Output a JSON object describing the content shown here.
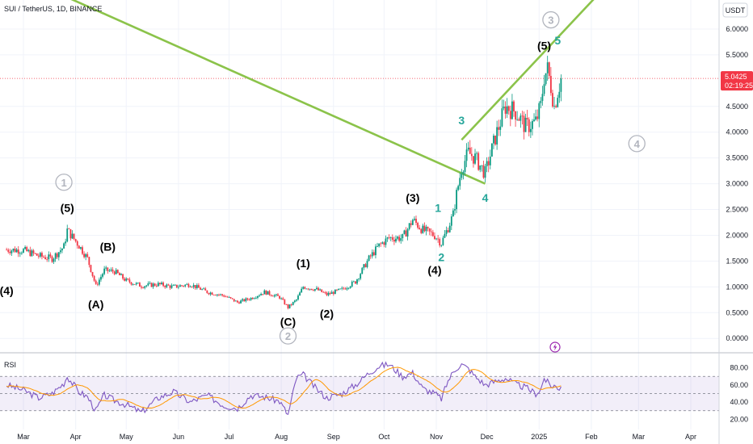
{
  "header": {
    "title": "SUI / TetherUS, 1D, BINANCE"
  },
  "axis": {
    "currency": "USDT"
  },
  "price": {
    "last": "5.0425",
    "countdown": "02:19:25"
  },
  "rsi": {
    "label": "RSI",
    "ticks": [
      "80.00",
      "60.00",
      "40.00",
      "20.00"
    ]
  },
  "colors": {
    "bull": "#089981",
    "bear": "#f23645",
    "channel": "#8bc34a",
    "wave_main": "#000000",
    "wave_minor": "#26a69a",
    "wave_circle": "#b2b5be",
    "rsi_line": "#7e57c2",
    "rsi_ma": "#ff9800",
    "rsi_band": "#7e57c2",
    "price_label": "#f23645"
  },
  "chart_data": [
    {
      "type": "candlestick",
      "title": "SUI / TetherUS, 1D, BINANCE",
      "ylabel": "USDT",
      "ylim": [
        -0.2,
        6.5
      ],
      "x_ticks": [
        "Mar",
        "Apr",
        "May",
        "Jun",
        "Jul",
        "Aug",
        "Sep",
        "Oct",
        "Nov",
        "Dec",
        "2025",
        "Feb",
        "Mar",
        "Apr"
      ],
      "y_ticks": [
        "6.0000",
        "5.5000",
        "4.5000",
        "4.0000",
        "3.5000",
        "3.0000",
        "2.5000",
        "2.0000",
        "1.5000",
        "1.0000",
        "0.5000",
        "0.0000"
      ],
      "last_price": 5.0425,
      "series": [
        {
          "name": "close",
          "x": [
            "Feb 20",
            "Mar 1",
            "Mar 10",
            "Mar 18",
            "Mar 25",
            "Mar 27",
            "Apr 3",
            "Apr 8",
            "Apr 13",
            "Apr 18",
            "Apr 24",
            "May 1",
            "May 10",
            "May 20",
            "May 29",
            "Jun 8",
            "Jun 18",
            "Jun 28",
            "Jul 6",
            "Jul 14",
            "Jul 22",
            "Jul 31",
            "Aug 5",
            "Aug 10",
            "Aug 14",
            "Aug 22",
            "Aug 28",
            "Sep 6",
            "Sep 14",
            "Sep 22",
            "Sep 28",
            "Oct 4",
            "Oct 12",
            "Oct 18",
            "Oct 24",
            "Oct 31",
            "Nov 4",
            "Nov 8",
            "Nov 11",
            "Nov 13",
            "Nov 16",
            "Nov 20",
            "Nov 24",
            "Nov 30",
            "Dec 6",
            "Dec 12",
            "Dec 18",
            "Dec 24",
            "Dec 30",
            "Jan 2",
            "Jan 4",
            "Jan 6",
            "Jan 8",
            "Jan 10",
            "Jan 12",
            "Jan 14"
          ],
          "values": [
            1.72,
            1.71,
            1.6,
            1.55,
            1.78,
            2.1,
            1.8,
            1.55,
            1.02,
            1.32,
            1.3,
            1.12,
            1.02,
            1.05,
            1.0,
            1.05,
            0.9,
            0.83,
            0.7,
            0.78,
            0.9,
            0.8,
            0.6,
            0.75,
            1.0,
            0.95,
            0.85,
            0.95,
            1.1,
            1.55,
            1.8,
            1.95,
            1.95,
            2.3,
            2.1,
            2.0,
            1.85,
            2.15,
            2.4,
            2.8,
            3.3,
            3.6,
            3.5,
            3.2,
            3.9,
            4.5,
            4.4,
            4.1,
            4.2,
            4.5,
            5.1,
            5.2,
            4.9,
            4.5,
            4.8,
            5.04
          ]
        }
      ],
      "wave_labels": [
        {
          "text": "(4)",
          "style": "main",
          "x": "Feb 20",
          "y": 0.85
        },
        {
          "text": "(5)",
          "style": "main",
          "x": "Mar 27",
          "y": 2.45
        },
        {
          "text": "(A)",
          "style": "main",
          "x": "Apr 13",
          "y": 0.58
        },
        {
          "text": "(B)",
          "style": "main",
          "x": "Apr 20",
          "y": 1.7
        },
        {
          "text": "(C)",
          "style": "main",
          "x": "Aug 5",
          "y": 0.25
        },
        {
          "text": "(1)",
          "style": "main",
          "x": "Aug 14",
          "y": 1.38
        },
        {
          "text": "(2)",
          "style": "main",
          "x": "Aug 28",
          "y": 0.4
        },
        {
          "text": "(3)",
          "style": "main",
          "x": "Oct 18",
          "y": 2.65
        },
        {
          "text": "(4)",
          "style": "main",
          "x": "Oct 31",
          "y": 1.25
        },
        {
          "text": "(5)",
          "style": "main",
          "x": "Jan 4",
          "y": 5.6
        },
        {
          "text": "1",
          "style": "minor",
          "x": "Nov 2",
          "y": 2.45
        },
        {
          "text": "2",
          "style": "minor",
          "x": "Nov 4",
          "y": 1.5
        },
        {
          "text": "3",
          "style": "minor",
          "x": "Nov 16",
          "y": 4.15
        },
        {
          "text": "4",
          "style": "minor",
          "x": "Nov 30",
          "y": 2.65
        },
        {
          "text": "5",
          "style": "minor",
          "x": "Jan 12",
          "y": 5.7
        },
        {
          "text": "1",
          "style": "circle",
          "x": "Mar 25",
          "y": 2.95
        },
        {
          "text": "2",
          "style": "circle",
          "x": "Aug 5",
          "y": -0.03
        },
        {
          "text": "3",
          "style": "circle",
          "x": "Jan 8",
          "y": 6.1
        },
        {
          "text": "4",
          "style": "circle",
          "x": "Feb 28",
          "y": 3.7
        }
      ],
      "channel": [
        {
          "from": {
            "x": "Nov 16",
            "y": 3.85
          },
          "to": {
            "x": "Feb 3",
            "y": 6.6
          }
        },
        {
          "from": {
            "x": "Nov 30",
            "y": 3.0
          },
          "to": {
            "x": "Mar 28",
            "y": 6.6
          }
        }
      ]
    },
    {
      "type": "line",
      "title": "RSI",
      "ylim": [
        10,
        90
      ],
      "y_ticks": [
        "80.00",
        "60.00",
        "40.00",
        "20.00"
      ],
      "band": [
        30,
        70
      ],
      "midline": 50,
      "series": [
        {
          "name": "rsi",
          "x": [
            "Feb 20",
            "Mar 1",
            "Mar 10",
            "Mar 18",
            "Mar 25",
            "Mar 27",
            "Apr 3",
            "Apr 8",
            "Apr 13",
            "Apr 18",
            "Apr 24",
            "May 1",
            "May 10",
            "May 20",
            "May 29",
            "Jun 8",
            "Jun 18",
            "Jun 28",
            "Jul 6",
            "Jul 14",
            "Jul 22",
            "Jul 31",
            "Aug 5",
            "Aug 10",
            "Aug 14",
            "Aug 22",
            "Aug 28",
            "Sep 6",
            "Sep 14",
            "Sep 22",
            "Sep 28",
            "Oct 4",
            "Oct 12",
            "Oct 18",
            "Oct 24",
            "Oct 31",
            "Nov 4",
            "Nov 8",
            "Nov 11",
            "Nov 13",
            "Nov 16",
            "Nov 20",
            "Nov 24",
            "Nov 30",
            "Dec 6",
            "Dec 12",
            "Dec 18",
            "Dec 24",
            "Dec 30",
            "Jan 2",
            "Jan 4",
            "Jan 6",
            "Jan 8",
            "Jan 10",
            "Jan 12",
            "Jan 14"
          ],
          "values": [
            60,
            54,
            45,
            50,
            62,
            70,
            52,
            46,
            30,
            48,
            42,
            37,
            28,
            45,
            52,
            40,
            48,
            36,
            33,
            48,
            46,
            41,
            25,
            68,
            72,
            55,
            45,
            50,
            60,
            74,
            82,
            84,
            70,
            74,
            56,
            50,
            44,
            65,
            75,
            80,
            84,
            79,
            70,
            60,
            64,
            68,
            61,
            57,
            50,
            55,
            68,
            63,
            58,
            60,
            55,
            58
          ]
        }
      ]
    }
  ]
}
